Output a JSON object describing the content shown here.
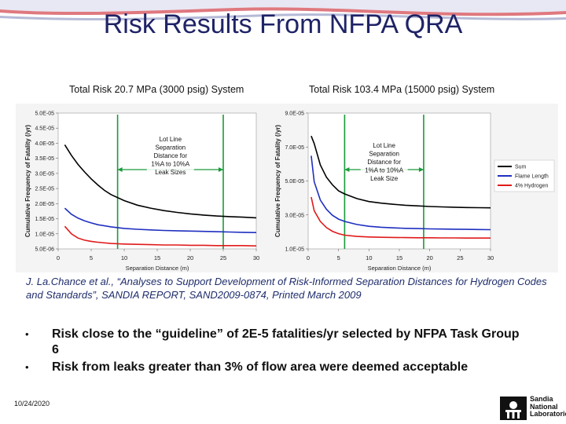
{
  "slide": {
    "title": "Risk Results From NFPA QRA",
    "date": "10/24/2020",
    "logo_text": [
      "Sandia",
      "National",
      "Laboratories"
    ]
  },
  "charts": {
    "left_title": "Total Risk 20.7 MPa (3000 psig) System",
    "right_title": "Total Risk 103.4 MPa (15000 psig) System"
  },
  "citation": "J. La.Chance et al., “Analyses to Support Development of Risk-Informed Separation Distances for Hydrogen Codes and Standards”, SANDIA REPORT, SAND2009-0874, Printed March 2009",
  "bullets": [
    "Risk close to the “guideline” of 2E-5 fatalities/yr selected by NFPA Task Group 6",
    "Risk from leaks greater than 3% of flow area were deemed acceptable"
  ],
  "chart_data": [
    {
      "type": "line",
      "title": "Total Risk 20.7 MPa (3000 psig) System",
      "xlabel": "Separation Distance (m)",
      "ylabel": "Cumulative Frequency of Fatality (/yr)",
      "xlim": [
        0,
        30
      ],
      "ylim": [
        5e-06,
        5e-05
      ],
      "x_ticks": [
        "0",
        "5",
        "10",
        "15",
        "20",
        "25",
        "30"
      ],
      "y_ticks": [
        "5.0E-05",
        "4.5E-05",
        "4.0E-05",
        "3.5E-05",
        "3.0E-05",
        "2.5E-05",
        "2.0E-05",
        "1.5E-05",
        "1.0E-05",
        "5.0E-06"
      ],
      "annotation": "Lot Line Separation Distance for 1%A to 10%A Leak Sizes",
      "annotation_range": [
        9,
        25
      ],
      "series": [
        {
          "name": "Sum",
          "color": "#000000",
          "x": [
            1,
            2,
            3,
            4,
            5,
            6,
            7,
            8,
            10,
            12,
            14,
            16,
            18,
            20,
            22,
            24,
            26,
            28,
            30
          ],
          "y": [
            3.95e-05,
            3.6e-05,
            3.3e-05,
            3.05e-05,
            2.82e-05,
            2.62e-05,
            2.44e-05,
            2.3e-05,
            2.1e-05,
            1.95e-05,
            1.85e-05,
            1.77e-05,
            1.71e-05,
            1.66e-05,
            1.62e-05,
            1.59e-05,
            1.57e-05,
            1.55e-05,
            1.53e-05
          ]
        },
        {
          "name": "Flame Length",
          "color": "#1f2fc0",
          "x": [
            1,
            2,
            3,
            4,
            5,
            6,
            8,
            10,
            12,
            14,
            16,
            18,
            20,
            22,
            24,
            26,
            28,
            30
          ],
          "y": [
            1.85e-05,
            1.65e-05,
            1.52e-05,
            1.43e-05,
            1.36e-05,
            1.3e-05,
            1.23e-05,
            1.18e-05,
            1.15e-05,
            1.13e-05,
            1.11e-05,
            1.1e-05,
            1.09e-05,
            1.08e-05,
            1.07e-05,
            1.06e-05,
            1.05e-05,
            1.04e-05
          ]
        },
        {
          "name": "4% Hydrogen",
          "color": "#e01a1a",
          "x": [
            1,
            2,
            3,
            4,
            5,
            6,
            8,
            10,
            12,
            14,
            16,
            18,
            20,
            22,
            24,
            26,
            28,
            30
          ],
          "y": [
            1.25e-05,
            1e-05,
            8.6e-06,
            7.9e-06,
            7.5e-06,
            7.2e-06,
            6.8e-06,
            6.6e-06,
            6.5e-06,
            6.4e-06,
            6.3e-06,
            6.3e-06,
            6.2e-06,
            6.2e-06,
            6.1e-06,
            6.1e-06,
            6.1e-06,
            6e-06
          ]
        }
      ]
    },
    {
      "type": "line",
      "title": "Total Risk 103.4 MPa (15000 psig) System",
      "xlabel": "Separation Distance (m)",
      "ylabel": "Cumulative Frequency of Fatality (/yr)",
      "xlim": [
        0,
        30
      ],
      "ylim": [
        1e-06,
        9e-05
      ],
      "x_ticks": [
        "0",
        "5",
        "10",
        "15",
        "20",
        "25",
        "30"
      ],
      "y_ticks": [
        "9.0E-05",
        "7.0E-05",
        "5.0E-05",
        "3.0E-05",
        "1.0E-05"
      ],
      "annotation": "Lot Line Separation Distance for 1%A to 10%A Leak Size",
      "annotation_range": [
        6,
        19
      ],
      "legend_position": "right",
      "series": [
        {
          "name": "Sum",
          "color": "#000000",
          "x": [
            0.5,
            1,
            2,
            3,
            4,
            5,
            6,
            8,
            10,
            12,
            14,
            16,
            18,
            20,
            22,
            24,
            26,
            28,
            30
          ],
          "y": [
            7.5e-05,
            7e-05,
            5.6e-05,
            4.8e-05,
            4.3e-05,
            3.9e-05,
            3.7e-05,
            3.4e-05,
            3.2e-05,
            3.1e-05,
            3.02e-05,
            2.96e-05,
            2.92e-05,
            2.88e-05,
            2.85e-05,
            2.83e-05,
            2.81e-05,
            2.8e-05,
            2.79e-05
          ]
        },
        {
          "name": "Flame Length",
          "color": "#1f2fc0",
          "x": [
            0.5,
            1,
            2,
            3,
            4,
            5,
            6,
            8,
            10,
            12,
            14,
            16,
            18,
            20,
            22,
            24,
            26,
            28,
            30
          ],
          "y": [
            6.2e-05,
            4.5e-05,
            3.3e-05,
            2.7e-05,
            2.3e-05,
            2.05e-05,
            1.9e-05,
            1.7e-05,
            1.58e-05,
            1.52e-05,
            1.48e-05,
            1.45e-05,
            1.43e-05,
            1.41e-05,
            1.4e-05,
            1.39e-05,
            1.38e-05,
            1.37e-05,
            1.36e-05
          ]
        },
        {
          "name": "4% Hydrogen",
          "color": "#e01a1a",
          "x": [
            0.5,
            1,
            2,
            3,
            4,
            5,
            6,
            8,
            10,
            12,
            14,
            16,
            18,
            20,
            22,
            24,
            26,
            28,
            30
          ],
          "y": [
            3.5e-05,
            2.6e-05,
            1.9e-05,
            1.5e-05,
            1.25e-05,
            1.1e-05,
            1e-05,
            9.2e-06,
            8.8e-06,
            8.6e-06,
            8.5e-06,
            8.4e-06,
            8.3e-06,
            8.3e-06,
            8.2e-06,
            8.2e-06,
            8.1e-06,
            8.1e-06,
            8.1e-06
          ]
        }
      ]
    }
  ]
}
